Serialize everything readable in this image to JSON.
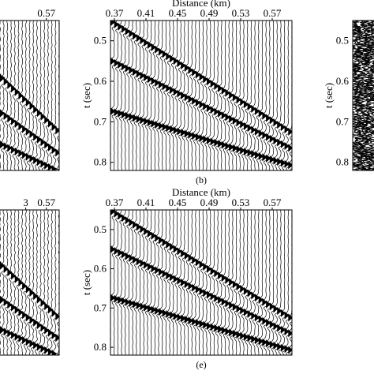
{
  "figure": {
    "panels": [
      {
        "id": "a",
        "caption": "",
        "x_title": "",
        "x_ticks": [
          "0.57"
        ],
        "y_title": "",
        "y_ticks": [],
        "style": "wiggle",
        "events": [
          [
            0.37,
            0.46,
            0.57,
            0.7
          ],
          [
            0.37,
            0.58,
            0.57,
            0.76
          ],
          [
            0.37,
            0.69,
            0.57,
            0.81
          ]
        ],
        "noise": 0.08
      },
      {
        "id": "b",
        "caption": "(b)",
        "x_title": "Distance (km)",
        "x_ticks": [
          "0.37",
          "0.41",
          "0.45",
          "0.49",
          "0.53",
          "0.57"
        ],
        "y_title": "t (sec)",
        "y_ticks": [
          "0.5",
          "0.6",
          "0.7",
          "0.8"
        ],
        "style": "wiggle",
        "events": [
          [
            0.37,
            0.46,
            0.57,
            0.7
          ],
          [
            0.37,
            0.555,
            0.57,
            0.745
          ],
          [
            0.37,
            0.677,
            0.57,
            0.795
          ]
        ],
        "noise": 0.0
      },
      {
        "id": "c",
        "caption": "",
        "x_title": "",
        "x_ticks": [],
        "y_title": "t (sec)",
        "y_ticks": [
          "0.5",
          "0.6",
          "0.7",
          "0.8"
        ],
        "style": "noise",
        "events": [],
        "noise": 1.0
      },
      {
        "id": "d",
        "caption": "",
        "x_title": "",
        "x_ticks": [
          "3",
          "0.57"
        ],
        "y_title": "",
        "y_ticks": [],
        "style": "wiggle",
        "events": [
          [
            0.37,
            0.46,
            0.57,
            0.7
          ],
          [
            0.37,
            0.58,
            0.57,
            0.76
          ],
          [
            0.37,
            0.69,
            0.57,
            0.81
          ]
        ],
        "noise": 0.1
      },
      {
        "id": "e",
        "caption": "(e)",
        "x_title": "Distance (km)",
        "x_ticks": [
          "0.37",
          "0.41",
          "0.45",
          "0.49",
          "0.53",
          "0.57"
        ],
        "y_title": "t (sec)",
        "y_ticks": [
          "0.5",
          "0.6",
          "0.7",
          "0.8"
        ],
        "style": "wiggle",
        "events": [
          [
            0.37,
            0.46,
            0.57,
            0.7
          ],
          [
            0.37,
            0.555,
            0.57,
            0.745
          ],
          [
            0.37,
            0.677,
            0.57,
            0.795
          ]
        ],
        "noise": 0.0
      }
    ]
  },
  "chart_data": [
    {
      "type": "line",
      "panel": "a",
      "title": "",
      "xlabel": "",
      "ylabel": "",
      "x_ticks": [
        0.57
      ],
      "note_partial": true
    },
    {
      "type": "line",
      "panel": "b",
      "title": "",
      "xlabel": "Distance (km)",
      "ylabel": "t (sec)",
      "xlim": [
        0.365,
        0.595
      ],
      "ylim": [
        0.45,
        0.82
      ],
      "x_ticks": [
        0.37,
        0.41,
        0.45,
        0.49,
        0.53,
        0.57
      ],
      "y_ticks": [
        0.5,
        0.6,
        0.7,
        0.8
      ],
      "grid": false,
      "series": [
        {
          "x": [
            0.37,
            0.57
          ],
          "y": [
            0.46,
            0.7
          ]
        },
        {
          "x": [
            0.37,
            0.57
          ],
          "y": [
            0.555,
            0.745
          ]
        },
        {
          "x": [
            0.37,
            0.57
          ],
          "y": [
            0.677,
            0.795
          ]
        }
      ]
    },
    {
      "type": "line",
      "panel": "c",
      "title": "",
      "xlabel": "",
      "ylabel": "t (sec)",
      "ylim": [
        0.45,
        0.82
      ],
      "y_ticks": [
        0.5,
        0.6,
        0.7,
        0.8
      ]
    },
    {
      "type": "line",
      "panel": "d",
      "title": "",
      "xlabel": "",
      "ylabel": "",
      "x_ticks": [
        0.57
      ]
    },
    {
      "type": "line",
      "panel": "e",
      "title": "",
      "xlabel": "Distance (km)",
      "ylabel": "t (sec)",
      "xlim": [
        0.365,
        0.595
      ],
      "ylim": [
        0.45,
        0.82
      ],
      "x_ticks": [
        0.37,
        0.41,
        0.45,
        0.49,
        0.53,
        0.57
      ],
      "y_ticks": [
        0.5,
        0.6,
        0.7,
        0.8
      ],
      "grid": false,
      "series": [
        {
          "x": [
            0.37,
            0.57
          ],
          "y": [
            0.46,
            0.7
          ]
        },
        {
          "x": [
            0.37,
            0.57
          ],
          "y": [
            0.555,
            0.745
          ]
        },
        {
          "x": [
            0.37,
            0.57
          ],
          "y": [
            0.677,
            0.795
          ]
        }
      ]
    }
  ]
}
